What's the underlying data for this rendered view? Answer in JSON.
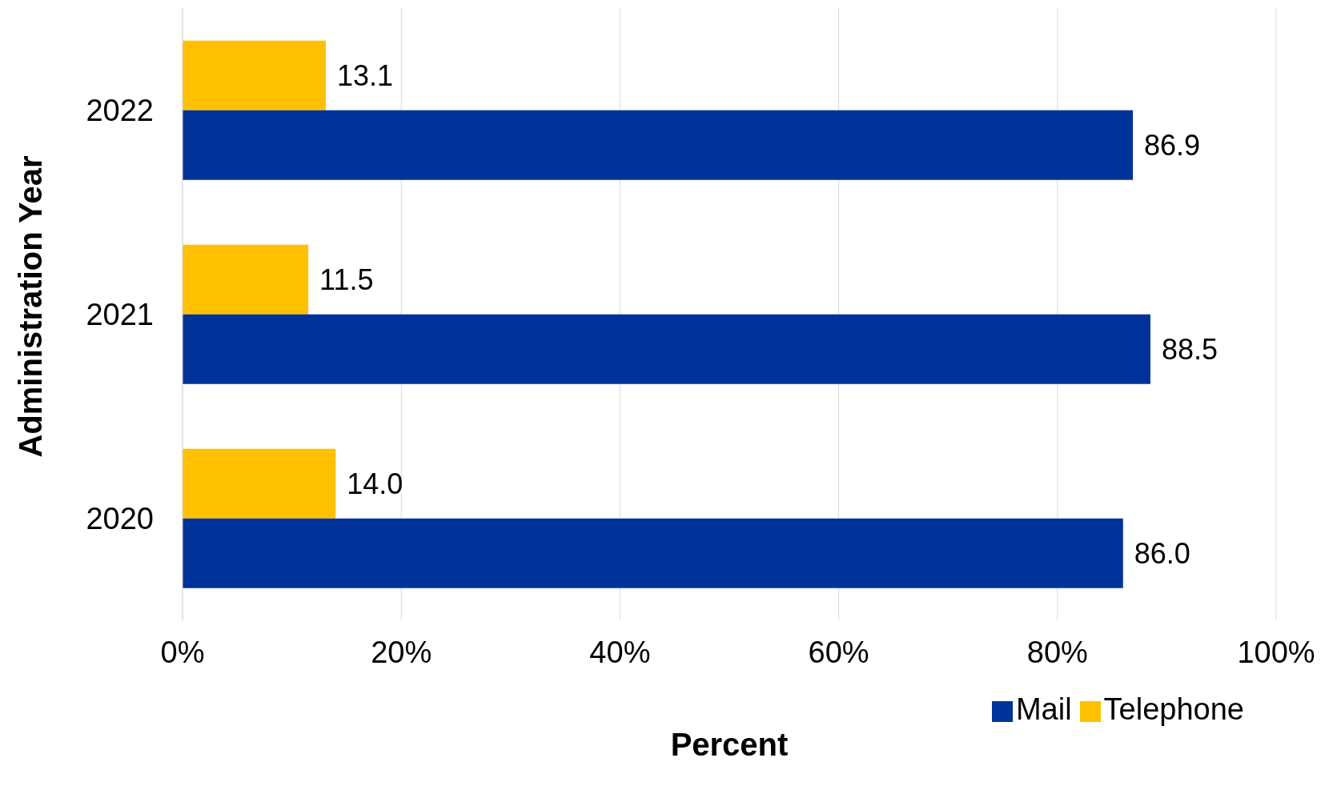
{
  "chart_data": {
    "type": "bar",
    "orientation": "horizontal",
    "xlabel": "Percent",
    "ylabel": "Administration Year",
    "categories": [
      "2022",
      "2021",
      "2020"
    ],
    "series": [
      {
        "name": "Telephone",
        "color": "#ffc000",
        "values": [
          13.1,
          11.5,
          14.0
        ],
        "value_labels": [
          "13.1",
          "11.5",
          "14.0"
        ]
      },
      {
        "name": "Mail",
        "color": "#003399",
        "values": [
          86.9,
          88.5,
          86.0
        ],
        "value_labels": [
          "86.9",
          "88.5",
          "86.0"
        ]
      }
    ],
    "xlim": [
      0,
      100
    ],
    "xticks": [
      {
        "value": 0,
        "label": "0%"
      },
      {
        "value": 20,
        "label": "20%"
      },
      {
        "value": 40,
        "label": "40%"
      },
      {
        "value": 60,
        "label": "60%"
      },
      {
        "value": 80,
        "label": "80%"
      },
      {
        "value": 100,
        "label": "100%"
      }
    ],
    "grid": "x",
    "legend": "bottom right"
  }
}
